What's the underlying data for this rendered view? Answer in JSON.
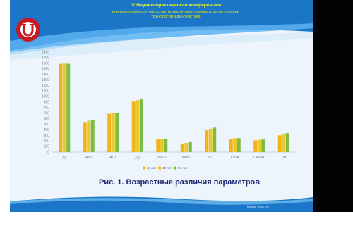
{
  "slide": {
    "conference_title": "IV Научно-практическая конференция",
    "conference_subtitle_1": "КЛИНИКО-ЛАБОРАТОРНЫЕ АСПЕКТЫ, ИНСТРУМЕНТАЛЬНЫЕ И ХИРУРГИЧЕСКИЕ",
    "conference_subtitle_2": "ТЕХНОЛОГИИ В ДИАГНОСТИКЕ",
    "caption": "Рис. 1. Возрастные различия параметров",
    "footer_url": "www.site.ru"
  },
  "colors": {
    "series_1": "#f2b21b",
    "series_2": "#e8ca2f",
    "series_3": "#7dbb42",
    "slide_background": "#eef4fb",
    "header_band": "#1b76c7",
    "caption_text": "#1f2a73",
    "logo_red": "#c61b24"
  },
  "chart_data": {
    "type": "bar",
    "categories": [
      "ДГ",
      "АЛТ",
      "АСТ",
      "ДД",
      "ИМЛТ",
      "ФВ%",
      "ЛП",
      "ТЗЛЖ",
      "ТЗМЖП",
      "ЛВ"
    ],
    "series": [
      {
        "values": [
          1590,
          540,
          690,
          910,
          230,
          150,
          390,
          230,
          210,
          300
        ]
      },
      {
        "values": [
          1595,
          565,
          700,
          935,
          240,
          165,
          420,
          250,
          220,
          330
        ]
      },
      {
        "values": [
          1590,
          580,
          705,
          955,
          240,
          185,
          440,
          250,
          225,
          340
        ]
      }
    ],
    "legend": [
      "20 лет",
      "40 лет",
      "60 лет"
    ],
    "y_ticks": [
      "0",
      "100",
      "200",
      "300",
      "400",
      "500",
      "600",
      "700",
      "800",
      "900",
      "1000",
      "1100",
      "1200",
      "1300",
      "1400",
      "1500",
      "1600",
      "1700",
      "1800"
    ],
    "ylim": [
      0,
      1800
    ],
    "grid": false,
    "legend_position": "bottom"
  }
}
